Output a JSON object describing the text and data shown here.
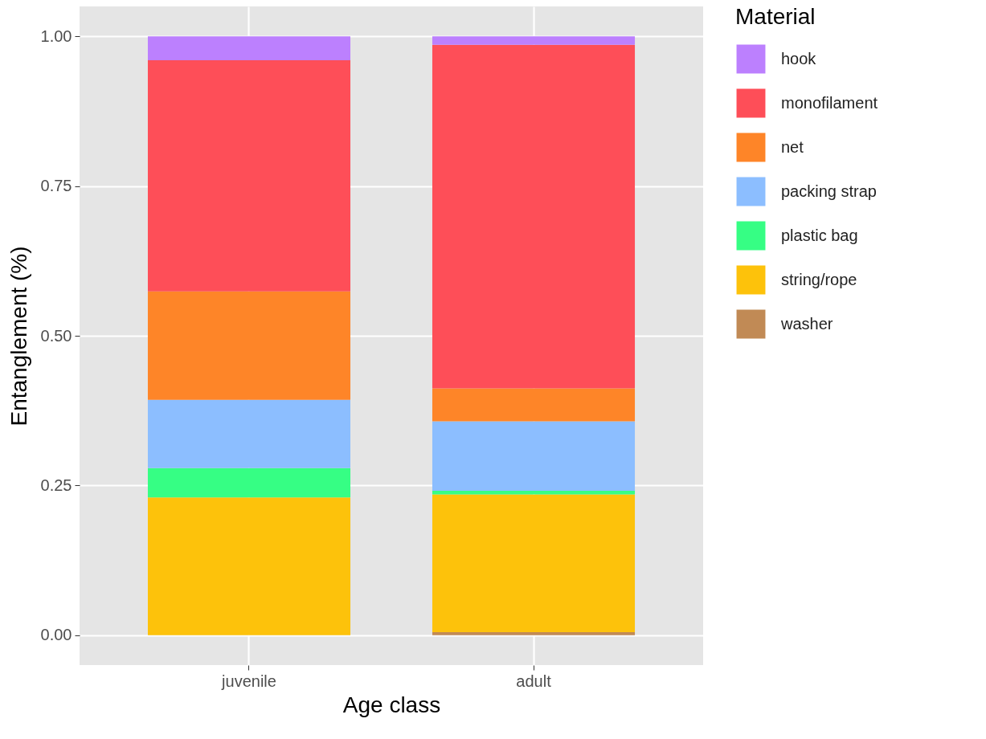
{
  "chart_data": {
    "type": "bar",
    "stacked": true,
    "xlabel": "Age class",
    "ylabel": "Entanglement (%)",
    "legend_title": "Material",
    "legend": "right",
    "grid": true,
    "categories": [
      "juvenile",
      "adult"
    ],
    "series": [
      {
        "name": "washer",
        "color": "#c18a55",
        "values": [
          0,
          0.005
        ]
      },
      {
        "name": "string/rope",
        "color": "#fdc20b",
        "values": [
          0.23,
          0.23
        ]
      },
      {
        "name": "plastic bag",
        "color": "#36fe84",
        "values": [
          0.049,
          0.006
        ]
      },
      {
        "name": "packing strap",
        "color": "#8cbeff",
        "values": [
          0.114,
          0.116
        ]
      },
      {
        "name": "net",
        "color": "#fe8528",
        "values": [
          0.181,
          0.055
        ]
      },
      {
        "name": "monofilament",
        "color": "#fe4e58",
        "values": [
          0.386,
          0.574
        ]
      },
      {
        "name": "hook",
        "color": "#bc80fe",
        "values": [
          0.04,
          0.014
        ]
      }
    ],
    "ylim": [
      -0.05,
      1.05
    ],
    "yticks": [
      {
        "value": 0,
        "label": "0.00"
      },
      {
        "value": 0.25,
        "label": "0.25"
      },
      {
        "value": 0.5,
        "label": "0.50"
      },
      {
        "value": 0.75,
        "label": "0.75"
      },
      {
        "value": 1,
        "label": "1.00"
      }
    ]
  }
}
